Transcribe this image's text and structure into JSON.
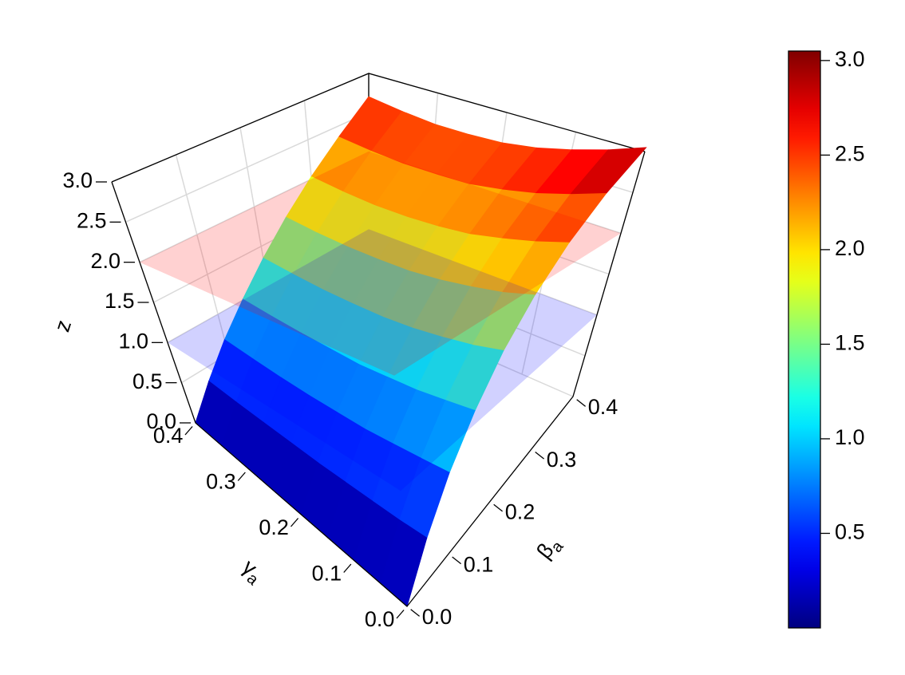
{
  "chart_data": {
    "type": "surface3d",
    "xlabel": {
      "symbol": "β",
      "subscript": "a"
    },
    "ylabel": {
      "symbol": "γ",
      "subscript": "a"
    },
    "zlabel": "z",
    "x": [
      0,
      0.05,
      0.1,
      0.15,
      0.2,
      0.25,
      0.3,
      0.35,
      0.4
    ],
    "y": [
      0,
      0.05,
      0.1,
      0.15,
      0.2,
      0.25,
      0.3,
      0.35,
      0.4
    ],
    "z": [
      [
        0,
        0.38,
        0.76,
        1.14,
        1.53,
        1.91,
        2.29,
        2.67,
        3.05
      ],
      [
        0,
        0.36,
        0.73,
        1.09,
        1.45,
        1.81,
        2.18,
        2.54,
        2.9
      ],
      [
        0,
        0.35,
        0.7,
        1.04,
        1.39,
        1.74,
        2.09,
        2.43,
        2.78
      ],
      [
        0,
        0.34,
        0.67,
        1.01,
        1.34,
        1.68,
        2.01,
        2.35,
        2.68
      ],
      [
        0,
        0.33,
        0.66,
        0.98,
        1.31,
        1.64,
        1.97,
        2.29,
        2.62
      ],
      [
        0,
        0.33,
        0.65,
        0.98,
        1.3,
        1.63,
        1.95,
        2.28,
        2.6
      ],
      [
        0,
        0.33,
        0.65,
        0.98,
        1.3,
        1.63,
        1.95,
        2.28,
        2.6
      ],
      [
        0,
        0.33,
        0.66,
        0.99,
        1.32,
        1.65,
        1.98,
        2.31,
        2.64
      ],
      [
        0,
        0.34,
        0.68,
        1.01,
        1.35,
        1.69,
        2.03,
        2.36,
        2.7
      ]
    ],
    "xlim": [
      0,
      0.4
    ],
    "xticks": [
      {
        "value": 0,
        "label": "0.0"
      },
      0.1,
      0.2,
      0.3,
      0.4
    ],
    "ylim": [
      0,
      0.4
    ],
    "yticks": [
      {
        "value": 0,
        "label": "0.0"
      },
      0.1,
      0.2,
      0.3,
      0.4
    ],
    "zlim": [
      0,
      3
    ],
    "zticks": [
      {
        "value": 0,
        "label": "0.0"
      },
      0.5,
      {
        "value": 1,
        "label": "1.0"
      },
      1.5,
      {
        "value": 2,
        "label": "2.0"
      },
      2.5,
      {
        "value": 3,
        "label": "3.0"
      }
    ],
    "planes": [
      {
        "z": 1,
        "color": "#0000ff"
      },
      {
        "z": 2,
        "color": "#ff0000"
      }
    ],
    "colormap": "jet",
    "clim": [
      0,
      3.05
    ],
    "cticks": [
      0.5,
      {
        "value": 1,
        "label": "1.0"
      },
      1.5,
      {
        "value": 2,
        "label": "2.0"
      },
      2.5,
      {
        "value": 3,
        "label": "3.0"
      }
    ],
    "grid": true
  }
}
